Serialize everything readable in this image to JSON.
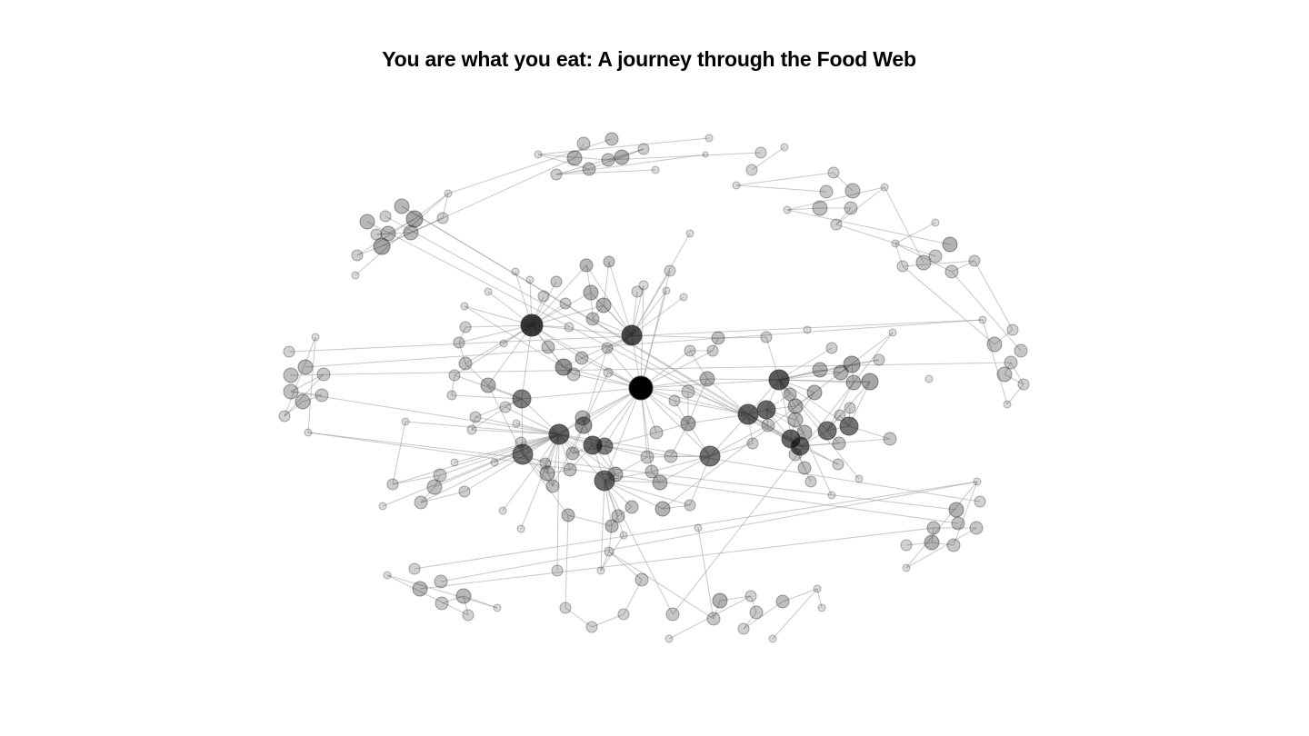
{
  "title": "You are what you eat: A journey through the Food Web",
  "colors": {
    "background": "#ffffff",
    "node": "#000000",
    "edge": "#9a9a9a"
  }
}
